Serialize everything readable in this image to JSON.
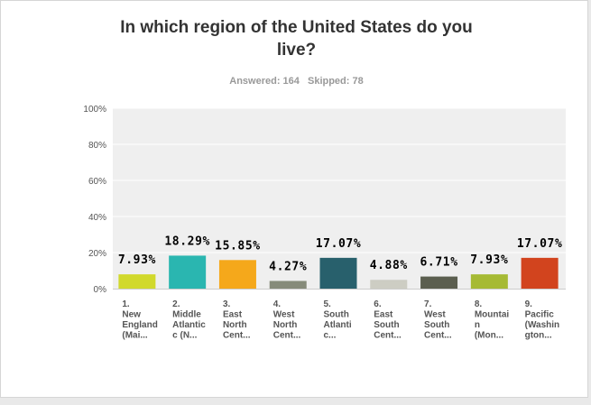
{
  "title_line1": "In which region of the United States do you",
  "title_line2": "live?",
  "answered_label": "Answered: 164",
  "skipped_label": "Skipped: 78",
  "colors": {
    "plot_bg": "#efefef",
    "grid": "#ffffff",
    "axis_text": "#555555",
    "label_text": "#000000"
  },
  "chart_data": {
    "type": "bar",
    "title": "In which region of the United States do you live?",
    "ylim": [
      0,
      100
    ],
    "y_ticks": [
      "0%",
      "20%",
      "40%",
      "60%",
      "80%",
      "100%"
    ],
    "y_tick_values": [
      0,
      20,
      40,
      60,
      80,
      100
    ],
    "grid": true,
    "categories": [
      [
        "1.",
        "New",
        "England",
        "(Mai..."
      ],
      [
        "2.",
        "Middle",
        "Atlantic",
        "c (N..."
      ],
      [
        "3.",
        "East",
        "North",
        "Cent..."
      ],
      [
        "4.",
        "West",
        "North",
        "Cent..."
      ],
      [
        "5.",
        "South",
        "Atlanti",
        "c..."
      ],
      [
        "6.",
        "East",
        "South",
        "Cent..."
      ],
      [
        "7.",
        "West",
        "South",
        "Cent..."
      ],
      [
        "8.",
        "Mountai",
        "n",
        "(Mon..."
      ],
      [
        "9.",
        "Pacific",
        "(Washin",
        "gton..."
      ]
    ],
    "values": [
      7.93,
      18.29,
      15.85,
      4.27,
      17.07,
      4.88,
      6.71,
      7.93,
      17.07
    ],
    "value_labels": [
      "7.93%",
      "18.29%",
      "15.85%",
      "4.27%",
      "17.07%",
      "4.88%",
      "6.71%",
      "7.93%",
      "17.07%"
    ],
    "bar_colors": [
      "#d1d92c",
      "#2ab6b0",
      "#f5a81b",
      "#868b7a",
      "#28606c",
      "#cdcdc3",
      "#5b5e4f",
      "#a6ba34",
      "#d2441e"
    ]
  }
}
